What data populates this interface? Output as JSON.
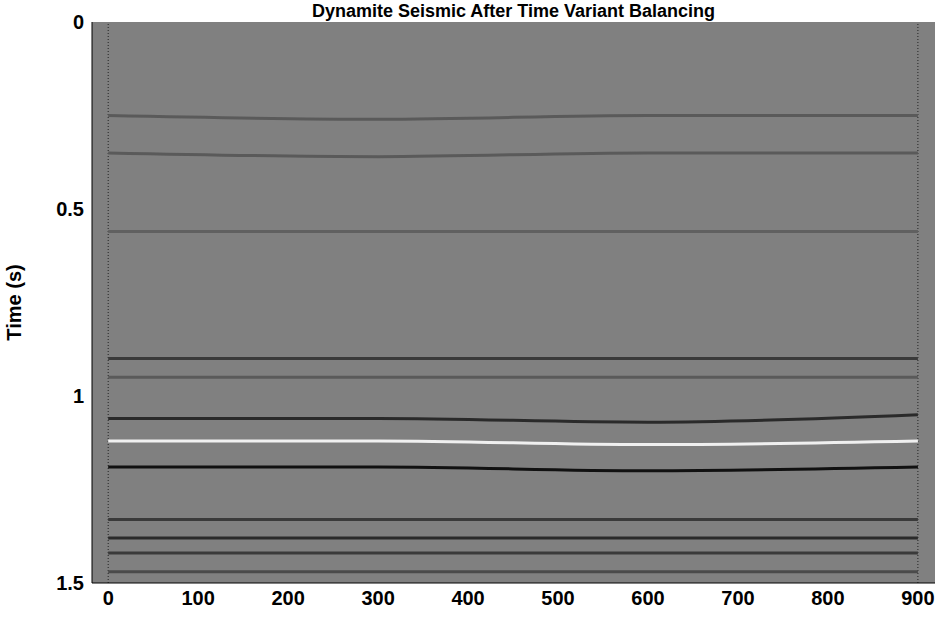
{
  "chart_data": {
    "type": "line",
    "title": "Dynamite Seismic After Time Variant Balancing",
    "y_label": "Time (s)",
    "color": "#808080",
    "x": [
      0,
      300,
      600,
      900
    ],
    "xlim": [
      -18,
      919
    ],
    "xticks": [
      0,
      100,
      200,
      300,
      400,
      500,
      600,
      700,
      800,
      900
    ],
    "ylim": [
      0,
      1.5
    ],
    "yticks": [
      0,
      0.5,
      1,
      1.5
    ],
    "grid": false,
    "series": [
      {
        "color": "#5a5a5a",
        "values": [
          0.25,
          0.26,
          0.25,
          0.25
        ]
      },
      {
        "color": "#5a5a5a",
        "values": [
          0.35,
          0.36,
          0.35,
          0.35
        ]
      },
      {
        "color": "#606060",
        "values": [
          0.56,
          0.56,
          0.56,
          0.56
        ]
      },
      {
        "color": "#3a3a3a",
        "values": [
          0.9,
          0.9,
          0.9,
          0.9
        ]
      },
      {
        "color": "#5a5a5a",
        "values": [
          0.95,
          0.95,
          0.95,
          0.95
        ]
      },
      {
        "color": "#2a2a2a",
        "values": [
          1.06,
          1.06,
          1.07,
          1.05
        ]
      },
      {
        "color": "#f0f0f0",
        "values": [
          1.12,
          1.12,
          1.13,
          1.12
        ]
      },
      {
        "color": "#111111",
        "values": [
          1.19,
          1.19,
          1.2,
          1.19
        ]
      },
      {
        "color": "#3a3a3a",
        "values": [
          1.33,
          1.33,
          1.33,
          1.33
        ]
      },
      {
        "color": "#2a2a2a",
        "values": [
          1.38,
          1.38,
          1.38,
          1.38
        ]
      },
      {
        "color": "#3a3a3a",
        "values": [
          1.42,
          1.42,
          1.42,
          1.42
        ]
      },
      {
        "color": "#4a4a4a",
        "values": [
          1.47,
          1.47,
          1.47,
          1.47
        ]
      }
    ]
  }
}
